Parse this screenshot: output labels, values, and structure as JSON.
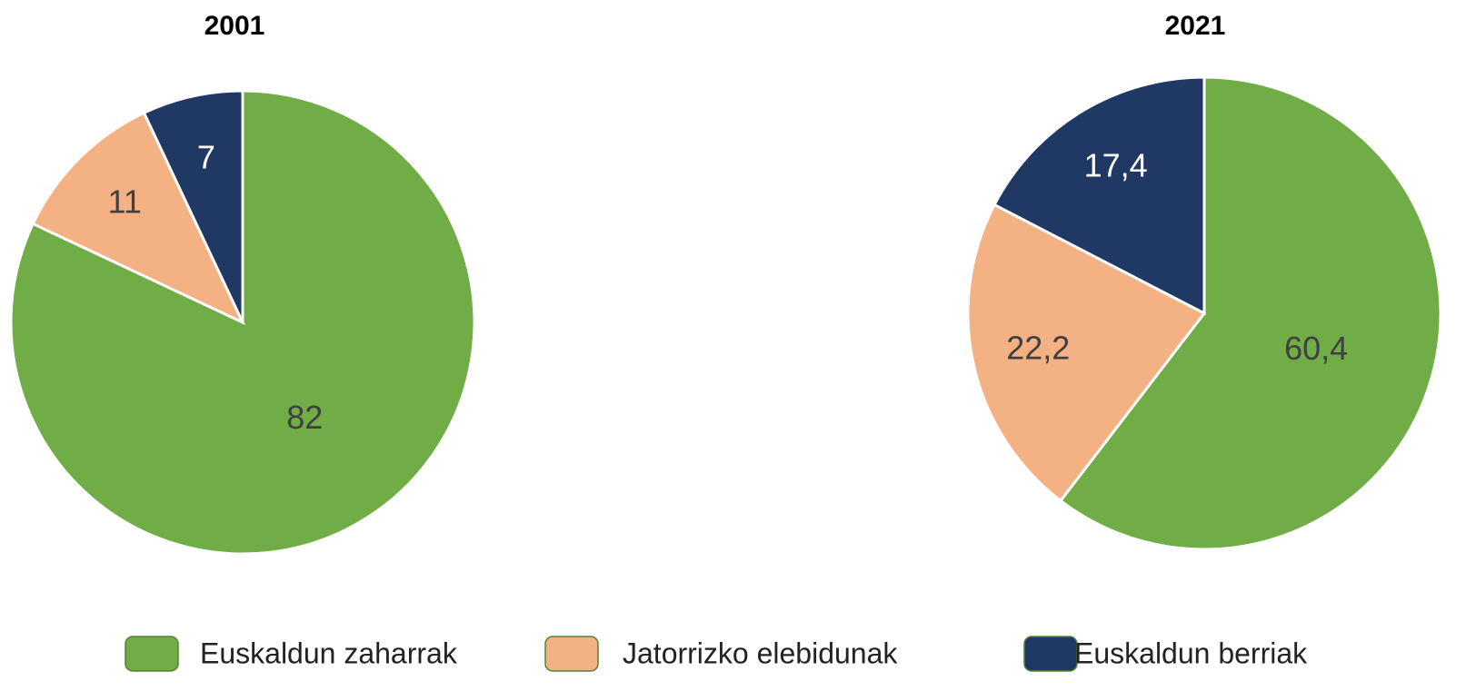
{
  "chart_data": [
    {
      "type": "pie",
      "title": "2001",
      "categories": [
        "Euskaldun zaharrak",
        "Jatorrizko elebidunak",
        "Euskaldun berriak"
      ],
      "values": [
        82,
        11,
        7
      ],
      "colors": [
        "#70ad47",
        "#f4b183",
        "#203864"
      ]
    },
    {
      "type": "pie",
      "title": "2021",
      "categories": [
        "Euskaldun zaharrak",
        "Jatorrizko elebidunak",
        "Euskaldun berriak"
      ],
      "values": [
        60.4,
        22.2,
        17.4
      ],
      "value_labels": [
        "60,4",
        "22,2",
        "17,4"
      ],
      "colors": [
        "#70ad47",
        "#f4b183",
        "#203864"
      ]
    }
  ]
}
